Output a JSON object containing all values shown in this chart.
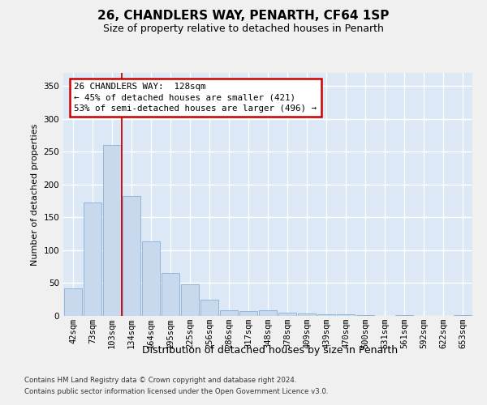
{
  "title1": "26, CHANDLERS WAY, PENARTH, CF64 1SP",
  "title2": "Size of property relative to detached houses in Penarth",
  "xlabel": "Distribution of detached houses by size in Penarth",
  "ylabel": "Number of detached properties",
  "bar_labels": [
    "42sqm",
    "73sqm",
    "103sqm",
    "134sqm",
    "164sqm",
    "195sqm",
    "225sqm",
    "256sqm",
    "286sqm",
    "317sqm",
    "348sqm",
    "378sqm",
    "409sqm",
    "439sqm",
    "470sqm",
    "500sqm",
    "531sqm",
    "561sqm",
    "592sqm",
    "622sqm",
    "653sqm"
  ],
  "bar_values": [
    42,
    173,
    260,
    182,
    114,
    65,
    48,
    25,
    9,
    8,
    9,
    5,
    4,
    3,
    2,
    1,
    0,
    1,
    0,
    0,
    1
  ],
  "bar_color": "#c8d8ed",
  "bar_edge_color": "#8ab0d4",
  "bg_color": "#dce8f5",
  "grid_color": "#ffffff",
  "red_line_x": 2.5,
  "annotation_text": "26 CHANDLERS WAY:  128sqm\n← 45% of detached houses are smaller (421)\n53% of semi-detached houses are larger (496) →",
  "annotation_box_facecolor": "#ffffff",
  "annotation_border_color": "#cc0000",
  "footer1": "Contains HM Land Registry data © Crown copyright and database right 2024.",
  "footer2": "Contains public sector information licensed under the Open Government Licence v3.0.",
  "fig_facecolor": "#f0f0f0",
  "ylim": [
    0,
    370
  ],
  "yticks": [
    0,
    50,
    100,
    150,
    200,
    250,
    300,
    350
  ],
  "title1_fontsize": 11,
  "title2_fontsize": 9,
  "ylabel_fontsize": 8,
  "xlabel_fontsize": 9,
  "tick_fontsize": 7.5,
  "annot_fontsize": 7.8,
  "footer_fontsize": 6.2
}
